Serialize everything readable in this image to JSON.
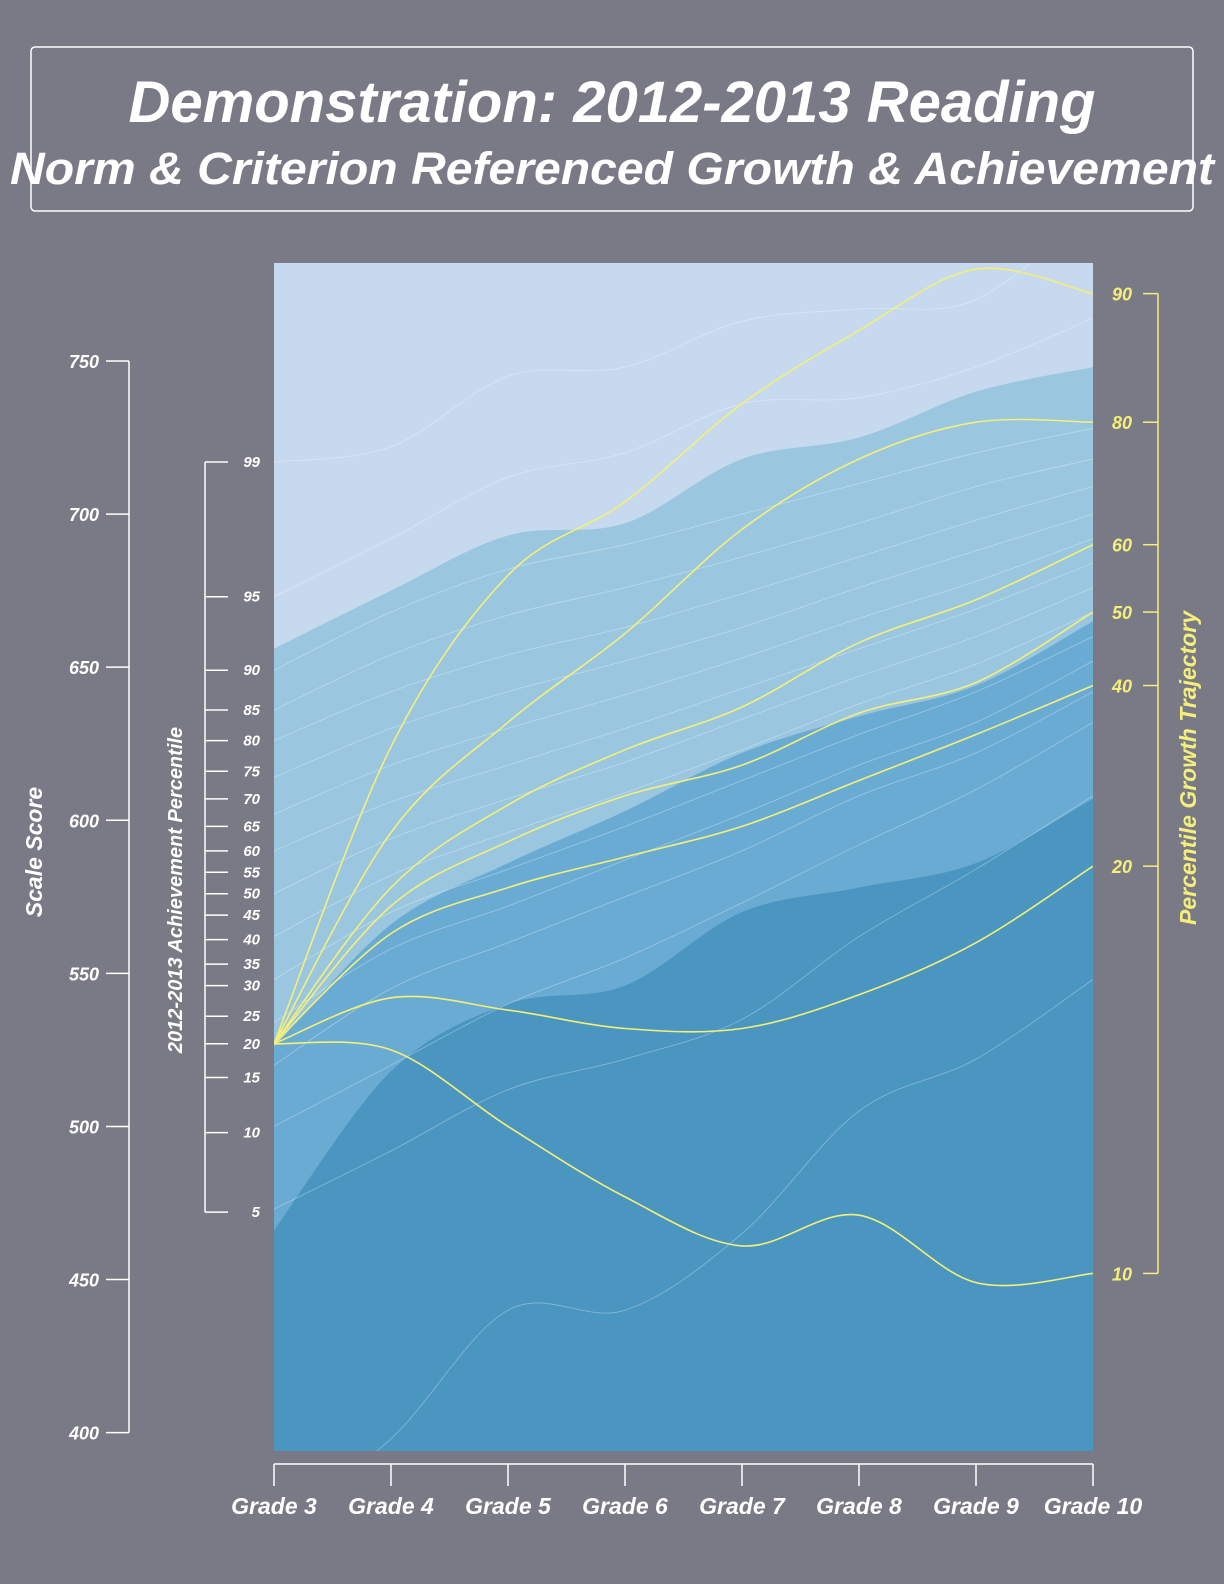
{
  "title": {
    "line1": "Demonstration: 2012-2013 Reading",
    "line2": "Norm & Criterion Referenced Growth & Achievement"
  },
  "colors": {
    "background": "#7a7a86",
    "band_top": "#c6d9ee",
    "band_2": "#9ac7df",
    "band_3": "#6aabd4",
    "band_bottom": "#4a96c1",
    "trajectory": "#f4ef7a",
    "axis": "#ffffff",
    "percentile_lines": "#ffffff"
  },
  "chart_data": {
    "type": "line",
    "x_label": "",
    "categories": [
      "Grade 3",
      "Grade 4",
      "Grade 5",
      "Grade 6",
      "Grade 7",
      "Grade 8",
      "Grade 9",
      "Grade 10"
    ],
    "scale_score_axis": {
      "label": "Scale Score",
      "ticks": [
        400,
        450,
        500,
        550,
        600,
        650,
        700,
        750
      ],
      "range": [
        394,
        782
      ]
    },
    "achievement_percentile_axis": {
      "label": "2012-2013 Achievement Percentile",
      "ticks": [
        {
          "label": "5",
          "score": 472
        },
        {
          "label": "10",
          "score": 498
        },
        {
          "label": "15",
          "score": 516
        },
        {
          "label": "20",
          "score": 527
        },
        {
          "label": "25",
          "score": 536
        },
        {
          "label": "30",
          "score": 546
        },
        {
          "label": "35",
          "score": 553
        },
        {
          "label": "40",
          "score": 561
        },
        {
          "label": "45",
          "score": 569
        },
        {
          "label": "50",
          "score": 576
        },
        {
          "label": "55",
          "score": 583
        },
        {
          "label": "60",
          "score": 590
        },
        {
          "label": "65",
          "score": 598
        },
        {
          "label": "70",
          "score": 607
        },
        {
          "label": "75",
          "score": 616
        },
        {
          "label": "80",
          "score": 626
        },
        {
          "label": "85",
          "score": 636
        },
        {
          "label": "90",
          "score": 649
        },
        {
          "label": "95",
          "score": 673
        },
        {
          "label": "99",
          "score": 717
        }
      ]
    },
    "growth_trajectory_axis": {
      "label": "Percentile Growth Trajectory",
      "ticks": [
        {
          "label": "90",
          "score": 772
        },
        {
          "label": "80",
          "score": 730
        },
        {
          "label": "60",
          "score": 690
        },
        {
          "label": "50",
          "score": 668
        },
        {
          "label": "40",
          "score": 644
        },
        {
          "label": "20",
          "score": 585
        },
        {
          "label": "10",
          "score": 452
        }
      ]
    },
    "achievement_bands": [
      {
        "name": "band_top",
        "upper": [
          782,
          782,
          782,
          782,
          782,
          782,
          782,
          782
        ]
      },
      {
        "name": "band_2",
        "upper": [
          656,
          675,
          693,
          697,
          718,
          725,
          740,
          748
        ]
      },
      {
        "name": "band_3",
        "upper": [
          526,
          566,
          586,
          603,
          622,
          634,
          644,
          665
        ]
      },
      {
        "name": "band_bottom",
        "upper": [
          466,
          518,
          540,
          546,
          570,
          578,
          586,
          607
        ]
      }
    ],
    "percentile_lines": [
      [
        370,
        398,
        440,
        440,
        465,
        505,
        522,
        548
      ],
      [
        473,
        492,
        512,
        522,
        535,
        562,
        584,
        608
      ],
      [
        500,
        520,
        540,
        555,
        573,
        592,
        610,
        632
      ],
      [
        520,
        545,
        560,
        575,
        590,
        608,
        622,
        642
      ],
      [
        534,
        558,
        572,
        587,
        602,
        618,
        632,
        652
      ],
      [
        548,
        570,
        584,
        598,
        613,
        628,
        642,
        660
      ],
      [
        562,
        582,
        596,
        609,
        623,
        638,
        651,
        668
      ],
      [
        576,
        594,
        607,
        619,
        633,
        647,
        660,
        676
      ],
      [
        590,
        606,
        618,
        630,
        643,
        656,
        669,
        684
      ],
      [
        602,
        618,
        630,
        641,
        653,
        666,
        678,
        692
      ],
      [
        614,
        630,
        642,
        652,
        663,
        676,
        688,
        700
      ],
      [
        626,
        642,
        654,
        663,
        674,
        686,
        698,
        709
      ],
      [
        636,
        654,
        667,
        676,
        686,
        697,
        709,
        718
      ],
      [
        649,
        668,
        682,
        690,
        700,
        710,
        720,
        728
      ],
      [
        673,
        692,
        712,
        720,
        736,
        738,
        748,
        764
      ],
      [
        717,
        722,
        745,
        748,
        763,
        767,
        770,
        800
      ]
    ],
    "trajectories": [
      {
        "name": "90",
        "values": [
          527,
          624,
          680,
          704,
          736,
          760,
          780,
          772
        ]
      },
      {
        "name": "80",
        "values": [
          527,
          596,
          632,
          661,
          695,
          718,
          730,
          730
        ]
      },
      {
        "name": "60",
        "values": [
          527,
          578,
          605,
          623,
          637,
          658,
          672,
          690
        ]
      },
      {
        "name": "50",
        "values": [
          527,
          572,
          593,
          608,
          618,
          635,
          645,
          668
        ]
      },
      {
        "name": "40",
        "values": [
          527,
          563,
          578,
          588,
          598,
          613,
          628,
          644
        ]
      },
      {
        "name": "20",
        "values": [
          527,
          542,
          538,
          532,
          532,
          543,
          560,
          585
        ]
      },
      {
        "name": "10",
        "values": [
          527,
          525,
          500,
          477,
          461,
          471,
          449,
          452
        ]
      }
    ]
  }
}
